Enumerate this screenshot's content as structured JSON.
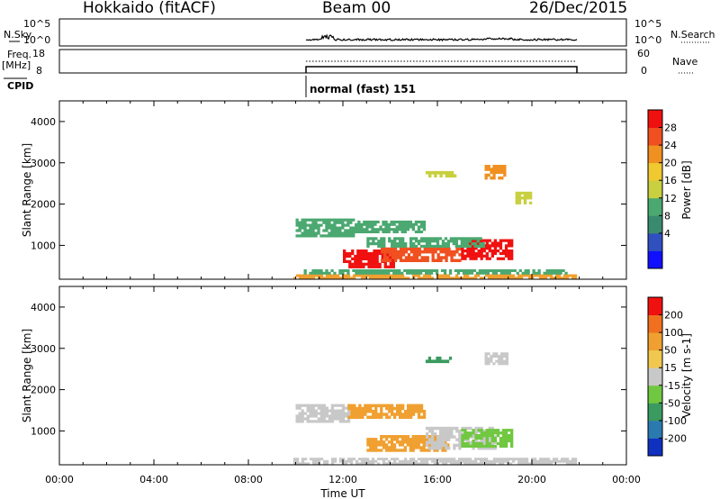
{
  "header": {
    "station": "Hokkaido (fitACF)",
    "beam": "Beam 00",
    "date": "26/Dec/2015"
  },
  "labels": {
    "nsky": "N.Sky",
    "freq": "Freq.",
    "mhz": "[MHz]",
    "cpid": "CPID",
    "nsearch": "N.Search",
    "nave": "Nave",
    "cpid_value": "normal (fast) 151",
    "xlabel": "Time UT"
  },
  "panels": {
    "noise": {
      "left_ticks": [
        "10^5",
        "10^0"
      ],
      "right_ticks": [
        "10^5",
        "10^0"
      ]
    },
    "freq": {
      "left_ticks": [
        "18",
        "8"
      ],
      "right_ticks": [
        "60",
        "0"
      ]
    }
  },
  "colorbars": {
    "power": {
      "label": "Power [dB]",
      "ticks": [
        "28",
        "24",
        "20",
        "16",
        "12",
        "8",
        "4"
      ],
      "colors": [
        "#1010ff",
        "#3050c0",
        "#3a8a70",
        "#4aa870",
        "#c8d040",
        "#f0c830",
        "#f09020",
        "#f05020",
        "#f01010"
      ]
    },
    "velocity": {
      "label": "Velocity [m s-1]",
      "ticks": [
        "200",
        "100",
        "50",
        "15",
        "-15",
        "-50",
        "-100",
        "-200"
      ],
      "colors": [
        "#1030c0",
        "#2a7ab0",
        "#3a9a60",
        "#70c840",
        "#c8c8c8",
        "#f0c850",
        "#f0a030",
        "#f07020",
        "#f01010"
      ]
    }
  },
  "chart_data": [
    {
      "type": "heatmap",
      "title": "Power",
      "xlabel": "Time UT",
      "ylabel": "Slant Range [km]",
      "x_ticks": [
        "00:00",
        "04:00",
        "08:00",
        "12:00",
        "16:00",
        "20:00",
        "00:00"
      ],
      "y_ticks": [
        "1000",
        "2000",
        "3000",
        "4000"
      ],
      "xlim": [
        0,
        24
      ],
      "ylim": [
        180,
        4500
      ],
      "regions": [
        {
          "t": [
            9.9,
            21.9
          ],
          "r": [
            180,
            300
          ],
          "color": "#f0a030"
        },
        {
          "t": [
            10.0,
            21.5
          ],
          "r": [
            300,
            420
          ],
          "color": "#4aa870"
        },
        {
          "t": [
            12.0,
            14.2
          ],
          "r": [
            450,
            900
          ],
          "color": "#f01010"
        },
        {
          "t": [
            13.6,
            17.0
          ],
          "r": [
            600,
            950
          ],
          "color": "#f05020"
        },
        {
          "t": [
            17.0,
            19.2
          ],
          "r": [
            650,
            1150
          ],
          "color": "#f01010"
        },
        {
          "t": [
            13.0,
            18.0
          ],
          "r": [
            950,
            1200
          ],
          "color": "#4aa870"
        },
        {
          "t": [
            10.0,
            12.5
          ],
          "r": [
            1200,
            1650
          ],
          "color": "#4aa870"
        },
        {
          "t": [
            12.5,
            15.5
          ],
          "r": [
            1300,
            1600
          ],
          "color": "#4aa870"
        },
        {
          "t": [
            15.5,
            16.8
          ],
          "r": [
            2650,
            2800
          ],
          "color": "#c8d040"
        },
        {
          "t": [
            18.0,
            18.9
          ],
          "r": [
            2600,
            2950
          ],
          "color": "#f09020"
        },
        {
          "t": [
            19.3,
            20.0
          ],
          "r": [
            2000,
            2300
          ],
          "color": "#c8d040"
        }
      ]
    },
    {
      "type": "heatmap",
      "title": "Velocity",
      "xlabel": "Time UT",
      "ylabel": "Slant Range [km]",
      "x_ticks": [
        "00:00",
        "04:00",
        "08:00",
        "12:00",
        "16:00",
        "20:00",
        "00:00"
      ],
      "y_ticks": [
        "1000",
        "2000",
        "3000",
        "4000"
      ],
      "xlim": [
        0,
        24
      ],
      "ylim": [
        180,
        4500
      ],
      "regions": [
        {
          "t": [
            9.9,
            21.9
          ],
          "r": [
            180,
            350
          ],
          "color": "#c8c8c8"
        },
        {
          "t": [
            13.0,
            16.5
          ],
          "r": [
            500,
            900
          ],
          "color": "#f0a030"
        },
        {
          "t": [
            15.5,
            18.5
          ],
          "r": [
            550,
            1100
          ],
          "color": "#c8c8c8"
        },
        {
          "t": [
            17.0,
            19.2
          ],
          "r": [
            600,
            1050
          ],
          "color": "#70c840"
        },
        {
          "t": [
            10.0,
            12.3
          ],
          "r": [
            1200,
            1650
          ],
          "color": "#c8c8c8"
        },
        {
          "t": [
            12.2,
            15.5
          ],
          "r": [
            1300,
            1650
          ],
          "color": "#f0a030"
        },
        {
          "t": [
            15.5,
            16.6
          ],
          "r": [
            2650,
            2800
          ],
          "color": "#3a9a60"
        },
        {
          "t": [
            18.0,
            19.0
          ],
          "r": [
            2600,
            2900
          ],
          "color": "#c8c8c8"
        }
      ]
    }
  ]
}
